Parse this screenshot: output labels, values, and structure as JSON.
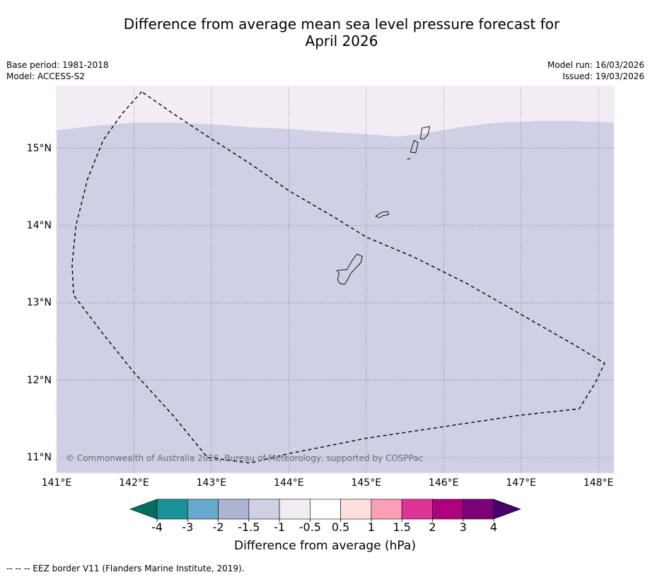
{
  "title": {
    "line1": "Difference from average mean sea level pressure forecast for",
    "line2": "April 2026"
  },
  "meta": {
    "base_period": "Base period: 1981-2018",
    "model": "Model: ACCESS-S2",
    "model_run": "Model run: 16/03/2026",
    "issued": "Issued: 19/03/2026"
  },
  "map": {
    "lon_range": [
      141.0,
      148.2
    ],
    "lat_range": [
      10.8,
      15.8
    ],
    "lon_ticks": [
      {
        "value": 141,
        "label": "141°E"
      },
      {
        "value": 142,
        "label": "142°E"
      },
      {
        "value": 143,
        "label": "143°E"
      },
      {
        "value": 144,
        "label": "144°E"
      },
      {
        "value": 145,
        "label": "145°E"
      },
      {
        "value": 146,
        "label": "146°E"
      },
      {
        "value": 147,
        "label": "147°E"
      },
      {
        "value": 148,
        "label": "148°E"
      }
    ],
    "lat_ticks": [
      {
        "value": 15,
        "label": "15°N"
      },
      {
        "value": 14,
        "label": "14°N"
      },
      {
        "value": 13,
        "label": "13°N"
      },
      {
        "value": 12,
        "label": "12°N"
      },
      {
        "value": 11,
        "label": "11°N"
      }
    ],
    "field_colors": {
      "upper": "#f4ecf5",
      "main": "#cfd0e5"
    },
    "boundary_lat": [
      {
        "lon": 141.0,
        "lat": 15.23
      },
      {
        "lon": 141.5,
        "lat": 15.29
      },
      {
        "lon": 142.0,
        "lat": 15.33
      },
      {
        "lon": 142.5,
        "lat": 15.33
      },
      {
        "lon": 143.0,
        "lat": 15.31
      },
      {
        "lon": 143.5,
        "lat": 15.27
      },
      {
        "lon": 144.0,
        "lat": 15.25
      },
      {
        "lon": 144.5,
        "lat": 15.21
      },
      {
        "lon": 145.0,
        "lat": 15.18
      },
      {
        "lon": 145.4,
        "lat": 15.15
      },
      {
        "lon": 145.7,
        "lat": 15.18
      },
      {
        "lon": 146.2,
        "lat": 15.27
      },
      {
        "lon": 146.7,
        "lat": 15.33
      },
      {
        "lon": 147.2,
        "lat": 15.35
      },
      {
        "lon": 147.7,
        "lat": 15.35
      },
      {
        "lon": 148.2,
        "lat": 15.33
      }
    ],
    "eez_border": [
      {
        "lon": 142.1,
        "lat": 15.73
      },
      {
        "lon": 141.85,
        "lat": 15.45
      },
      {
        "lon": 141.6,
        "lat": 15.1
      },
      {
        "lon": 141.4,
        "lat": 14.6
      },
      {
        "lon": 141.25,
        "lat": 14.0
      },
      {
        "lon": 141.2,
        "lat": 13.5
      },
      {
        "lon": 141.22,
        "lat": 13.1
      },
      {
        "lon": 141.6,
        "lat": 12.6
      },
      {
        "lon": 142.0,
        "lat": 12.1
      },
      {
        "lon": 142.5,
        "lat": 11.55
      },
      {
        "lon": 142.95,
        "lat": 11.0
      },
      {
        "lon": 143.5,
        "lat": 10.93
      },
      {
        "lon": 144.0,
        "lat": 11.05
      },
      {
        "lon": 145.0,
        "lat": 11.25
      },
      {
        "lon": 146.0,
        "lat": 11.4
      },
      {
        "lon": 147.0,
        "lat": 11.55
      },
      {
        "lon": 147.75,
        "lat": 11.63
      },
      {
        "lon": 147.95,
        "lat": 11.95
      },
      {
        "lon": 148.08,
        "lat": 12.22
      },
      {
        "lon": 147.7,
        "lat": 12.45
      },
      {
        "lon": 147.0,
        "lat": 12.85
      },
      {
        "lon": 146.3,
        "lat": 13.25
      },
      {
        "lon": 145.6,
        "lat": 13.6
      },
      {
        "lon": 145.0,
        "lat": 13.85
      },
      {
        "lon": 144.6,
        "lat": 14.1
      },
      {
        "lon": 144.0,
        "lat": 14.45
      },
      {
        "lon": 143.5,
        "lat": 14.8
      },
      {
        "lon": 143.0,
        "lat": 15.12
      },
      {
        "lon": 142.5,
        "lat": 15.45
      },
      {
        "lon": 142.1,
        "lat": 15.73
      }
    ],
    "islands": [
      {
        "name": "guam",
        "points": [
          {
            "lon": 144.62,
            "lat": 13.42
          },
          {
            "lon": 144.75,
            "lat": 13.43
          },
          {
            "lon": 144.82,
            "lat": 13.55
          },
          {
            "lon": 144.88,
            "lat": 13.63
          },
          {
            "lon": 144.95,
            "lat": 13.6
          },
          {
            "lon": 144.93,
            "lat": 13.52
          },
          {
            "lon": 144.8,
            "lat": 13.38
          },
          {
            "lon": 144.76,
            "lat": 13.3
          },
          {
            "lon": 144.72,
            "lat": 13.24
          },
          {
            "lon": 144.66,
            "lat": 13.25
          },
          {
            "lon": 144.63,
            "lat": 13.3
          },
          {
            "lon": 144.65,
            "lat": 13.38
          },
          {
            "lon": 144.62,
            "lat": 13.42
          }
        ]
      },
      {
        "name": "rota",
        "points": [
          {
            "lon": 145.12,
            "lat": 14.12
          },
          {
            "lon": 145.2,
            "lat": 14.17
          },
          {
            "lon": 145.28,
            "lat": 14.18
          },
          {
            "lon": 145.29,
            "lat": 14.14
          },
          {
            "lon": 145.22,
            "lat": 14.13
          },
          {
            "lon": 145.17,
            "lat": 14.1
          },
          {
            "lon": 145.12,
            "lat": 14.12
          }
        ]
      },
      {
        "name": "tinian",
        "points": [
          {
            "lon": 145.57,
            "lat": 14.95
          },
          {
            "lon": 145.62,
            "lat": 15.1
          },
          {
            "lon": 145.67,
            "lat": 15.07
          },
          {
            "lon": 145.64,
            "lat": 14.94
          },
          {
            "lon": 145.57,
            "lat": 14.95
          }
        ]
      },
      {
        "name": "saipan",
        "points": [
          {
            "lon": 145.7,
            "lat": 15.12
          },
          {
            "lon": 145.72,
            "lat": 15.26
          },
          {
            "lon": 145.82,
            "lat": 15.28
          },
          {
            "lon": 145.8,
            "lat": 15.18
          },
          {
            "lon": 145.75,
            "lat": 15.12
          },
          {
            "lon": 145.7,
            "lat": 15.12
          }
        ]
      },
      {
        "name": "aguijan",
        "points": [
          {
            "lon": 145.53,
            "lat": 14.85
          },
          {
            "lon": 145.57,
            "lat": 14.87
          }
        ]
      }
    ],
    "copyright": "© Commonwealth of Australia 2026, Bureau of Meteorology, supported by COSPPac"
  },
  "colorbar": {
    "ticks": [
      "-4",
      "-3",
      "-2",
      "-1.5",
      "-1",
      "-0.5",
      "0.5",
      "1",
      "1.5",
      "2",
      "3",
      "4"
    ],
    "colors": [
      "#1a9196",
      "#67a9cf",
      "#abb5d2",
      "#cfd0e5",
      "#f4ecf5",
      "#ffffff",
      "#fde0dd",
      "#fa9fb5",
      "#dd3497",
      "#ae017e",
      "#7a0177"
    ],
    "under_color": "#036d5e",
    "over_color": "#49006a",
    "label": "Difference from average (hPa)"
  },
  "footnote": "--  --  -- EEZ border V11 (Flanders Marine Institute, 2019)."
}
